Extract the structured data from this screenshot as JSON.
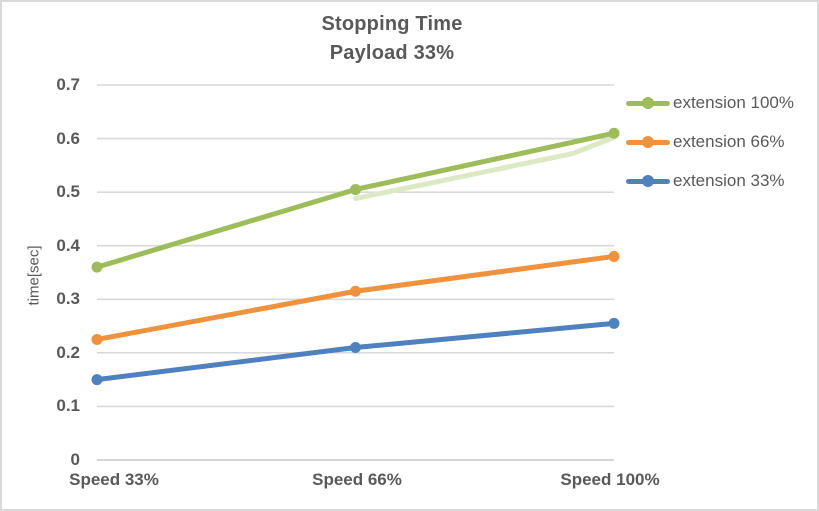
{
  "title": {
    "line1": "Stopping Time",
    "line2": "Payload 33%"
  },
  "colors": {
    "text": "#595959",
    "gridline": "#d9d9d9",
    "axis_line": "#c9c9c9",
    "background": "#ffffff",
    "frame_border": "#d9d9d9"
  },
  "chart_data": {
    "type": "line",
    "title": "Stopping Time",
    "subtitle": "Payload 33%",
    "categories": [
      "Speed 33%",
      "Speed 66%",
      "Speed 100%"
    ],
    "series": [
      {
        "name": "extension 100%",
        "color": "#9dbc5a",
        "values": [
          0.36,
          0.505,
          0.61
        ]
      },
      {
        "name": "extension 66%",
        "color": "#f0913d",
        "values": [
          0.225,
          0.315,
          0.38
        ]
      },
      {
        "name": "extension 33%",
        "color": "#4e81bd",
        "values": [
          0.15,
          0.21,
          0.255
        ]
      }
    ],
    "shadow_overlay": {
      "color": "#dde9c4",
      "points": [
        [
          0.5,
          0.488
        ],
        [
          0.92,
          0.572
        ],
        [
          1.0,
          0.602
        ]
      ],
      "description": "pale green echo under the extension 100% line, last segment"
    },
    "xlabel": "",
    "ylabel": "time[sec]",
    "ylim": [
      0,
      0.7
    ],
    "y_ticks": [
      "0",
      "0.1",
      "0.2",
      "0.3",
      "0.4",
      "0.5",
      "0.6",
      "0.7"
    ],
    "grid": true,
    "legend_position": "right",
    "marker": "circle"
  }
}
